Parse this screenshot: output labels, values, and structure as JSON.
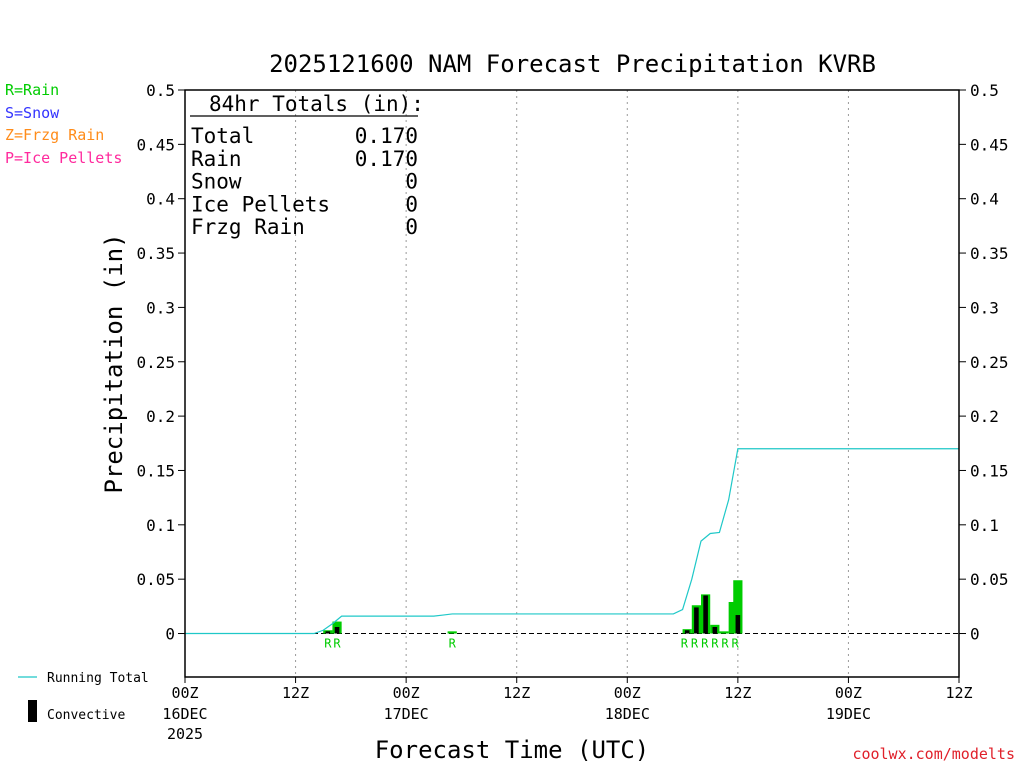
{
  "chart_data": {
    "type": "bar",
    "title": "2025121600 NAM Forecast Precipitation KVRB",
    "xlabel": "Forecast Time (UTC)",
    "ylabel": "Precipitation (in)",
    "ylim": [
      -0.04,
      0.5
    ],
    "xlim_hours": [
      0,
      84
    ],
    "y_ticks": [
      "0",
      "0.05",
      "0.1",
      "0.15",
      "0.2",
      "0.25",
      "0.3",
      "0.35",
      "0.4",
      "0.45",
      "0.5"
    ],
    "y_tick_values": [
      0,
      0.05,
      0.1,
      0.15,
      0.2,
      0.25,
      0.3,
      0.35,
      0.4,
      0.45,
      0.5
    ],
    "x_ticks": [
      {
        "hour": 0,
        "label": "00Z",
        "date": "16DEC",
        "year": "2025"
      },
      {
        "hour": 12,
        "label": "12Z",
        "date": "",
        "year": ""
      },
      {
        "hour": 24,
        "label": "00Z",
        "date": "17DEC",
        "year": ""
      },
      {
        "hour": 36,
        "label": "12Z",
        "date": "",
        "year": ""
      },
      {
        "hour": 48,
        "label": "00Z",
        "date": "18DEC",
        "year": ""
      },
      {
        "hour": 60,
        "label": "12Z",
        "date": "",
        "year": ""
      },
      {
        "hour": 72,
        "label": "00Z",
        "date": "19DEC",
        "year": ""
      },
      {
        "hour": 84,
        "label": "12Z",
        "date": "",
        "year": ""
      }
    ],
    "gridlines_hours": [
      12,
      24,
      36,
      48,
      60,
      72
    ],
    "totals_box": {
      "header": "84hr Totals (in):",
      "rows": [
        {
          "label": "Total",
          "value": "0.170"
        },
        {
          "label": "Rain",
          "value": "0.170"
        },
        {
          "label": "Snow",
          "value": "0"
        },
        {
          "label": "Ice Pellets",
          "value": "0"
        },
        {
          "label": "Frzg Rain",
          "value": "0"
        }
      ]
    },
    "precip_type_legend": [
      {
        "text": "R=Rain",
        "color": "#00cc00"
      },
      {
        "text": "S=Snow",
        "color": "#3333ff"
      },
      {
        "text": "Z=Frzg Rain",
        "color": "#ff8c1a"
      },
      {
        "text": "P=Ice Pellets",
        "color": "#ff2a9d"
      }
    ],
    "series_legend": [
      {
        "name": "Running Total",
        "color": "#1fc8c8"
      },
      {
        "name": "Convective",
        "color": "#000000"
      }
    ],
    "bars": [
      {
        "hour": 15.5,
        "total": 0.003,
        "convective": 0.002,
        "type": "R"
      },
      {
        "hour": 16.5,
        "total": 0.011,
        "convective": 0.006,
        "type": "R"
      },
      {
        "hour": 29,
        "total": 0.002,
        "convective": 0.0,
        "type": "R"
      },
      {
        "hour": 54.5,
        "total": 0.004,
        "convective": 0.003,
        "type": "R"
      },
      {
        "hour": 55.5,
        "total": 0.026,
        "convective": 0.024,
        "type": "R"
      },
      {
        "hour": 56.5,
        "total": 0.036,
        "convective": 0.035,
        "type": "R"
      },
      {
        "hour": 57.5,
        "total": 0.008,
        "convective": 0.006,
        "type": "R"
      },
      {
        "hour": 58.5,
        "total": 0.002,
        "convective": 0.0,
        "type": "R"
      },
      {
        "hour": 59.5,
        "total": 0.029,
        "convective": 0.0,
        "type": "R"
      },
      {
        "hour": 60,
        "total": 0.049,
        "convective": 0.017,
        "type": "R"
      }
    ],
    "type_labels": [
      {
        "hour": 15.5,
        "text": "R"
      },
      {
        "hour": 16.5,
        "text": "R"
      },
      {
        "hour": 29,
        "text": "R"
      },
      {
        "hour": 54.2,
        "text": "R"
      },
      {
        "hour": 55.3,
        "text": "R"
      },
      {
        "hour": 56.4,
        "text": "R"
      },
      {
        "hour": 57.5,
        "text": "R"
      },
      {
        "hour": 58.6,
        "text": "R"
      },
      {
        "hour": 59.7,
        "text": "R"
      }
    ],
    "running_total": {
      "hours": [
        0,
        14,
        15,
        16,
        17,
        27,
        28,
        29,
        53,
        54,
        55,
        56,
        57,
        58,
        59,
        60,
        84
      ],
      "values": [
        0,
        0,
        0.003,
        0.009,
        0.016,
        0.016,
        0.017,
        0.018,
        0.018,
        0.022,
        0.05,
        0.085,
        0.092,
        0.093,
        0.123,
        0.17,
        0.17
      ]
    }
  },
  "watermark": "coolwx.com/modelts"
}
